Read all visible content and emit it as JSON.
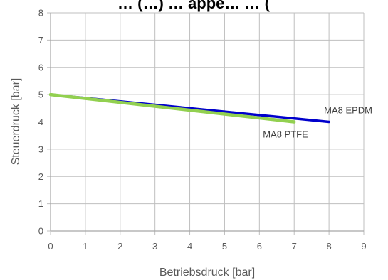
{
  "chart_data": {
    "type": "line",
    "title": "… (…) … appe… … (",
    "xlabel": "Betriebsdruck [bar]",
    "ylabel": "Steuerdruck [bar]",
    "xlim": [
      0,
      9
    ],
    "ylim": [
      0,
      8
    ],
    "xticks": [
      "0",
      "1",
      "2",
      "3",
      "4",
      "5",
      "6",
      "7",
      "8",
      "9"
    ],
    "yticks": [
      "0",
      "1",
      "2",
      "3",
      "4",
      "5",
      "6",
      "7",
      "8"
    ],
    "grid": true,
    "legend": "none",
    "series": [
      {
        "name": "MA8 EPDM",
        "color": "#0000CC",
        "x": [
          0,
          8
        ],
        "y": [
          5,
          4
        ]
      },
      {
        "name": "MA8 PTFE",
        "color": "#92D050",
        "x": [
          0,
          7
        ],
        "y": [
          5,
          4
        ]
      }
    ]
  }
}
